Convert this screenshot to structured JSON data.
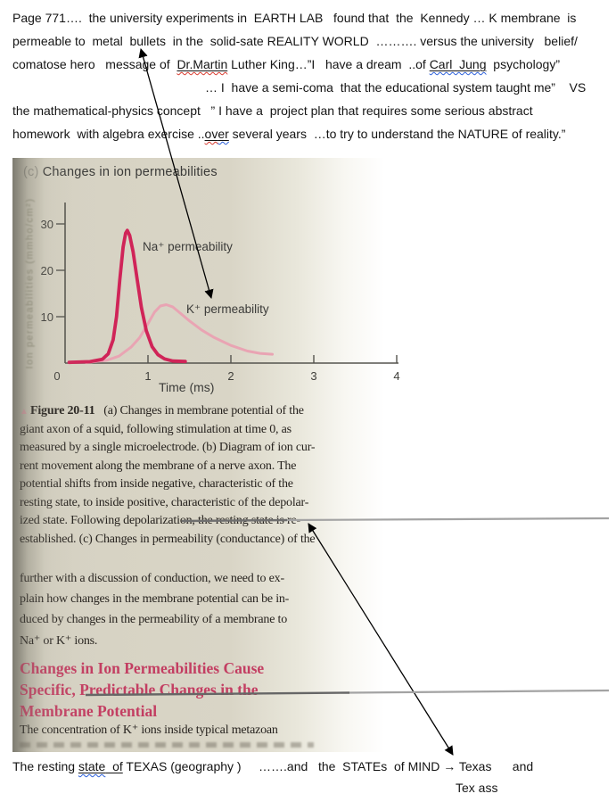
{
  "top": {
    "line1": "Page 771….  the university experiments in  EARTH LAB   found that  the  Kennedy … K membrane  is",
    "line2": "permeable to  metal  bullets  in the  solid-sate REALITY WORLD  ………. versus the university   belief/",
    "line3a": "comatose hero   message of  ",
    "line3_dr": "Dr.Martin",
    "line3b": " Luther King…”I   have a dream  ..of ",
    "line3_cj": "Carl  Jung",
    "line3c": "  psychology”",
    "line4": "… I  have a semi-coma  that the educational system taught me”    VS",
    "line5": "the mathematical-physics concept   ” I have a  project plan that requires some serious abstract",
    "line6a": "homework  with algebra exercise ..",
    "line6_ov": "ov",
    "line6_er": "er",
    "line6b": " several years  …to try to understand the NATURE of reality.”"
  },
  "scan": {
    "chart": {
      "title_prefix": "(c) ",
      "title": "Changes in ion permeabilities",
      "ylabel": "Ion permeabilities (mmho/cm²)",
      "na_label": "Na⁺ permeability",
      "k_label": "K⁺ permeability",
      "xlabel": "Time (ms)"
    },
    "caption": {
      "marker": "▲ ",
      "figure": "Figure 20-11",
      "line1rest": "   (a) Changes in membrane potential of the",
      "lines": [
        "giant axon of a squid, following stimulation at time 0, as",
        "measured by a single microelectrode. (b) Diagram of ion cur-",
        "rent movement along the membrane of a nerve axon. The",
        "potential shifts from inside negative, characteristic of the",
        "resting state, to inside positive, characteristic of the depolar-",
        "ized state. Following depolarization, the resting state is re-",
        "established. (c) Changes in permeability (conductance) of the"
      ]
    },
    "para2": {
      "lines": [
        "further with a discussion of conduction, we need to ex-",
        "plain how changes in the membrane potential can be in-",
        "duced by changes in the permeability of a membrane to",
        "Na⁺ or K⁺ ions."
      ]
    },
    "heading": {
      "color": "#c33e62",
      "lines": [
        "Changes in Ion Permeabilities Cause",
        "Specific, Predictable Changes in the",
        "Membrane Potential"
      ]
    },
    "para3": "The concentration of K⁺ ions inside typical metazoan"
  },
  "bottom": {
    "b1": "The resting ",
    "state": "state",
    "state_of_rest": "  of",
    "b2": " TEXAS (geography )     …….and   the  STATEs  of MIND ",
    "arrow_glyph": "→",
    "b3": " Texas      and",
    "texass": "Tex ass"
  },
  "chart_data": {
    "type": "line",
    "title": "(c) Changes in ion permeabilities",
    "xlabel": "Time (ms)",
    "ylabel": "Ion permeabilities (mmho/cm²)",
    "xlim": [
      0,
      4.2
    ],
    "ylim": [
      0,
      34
    ],
    "xticks": [
      0,
      1,
      2,
      3,
      4
    ],
    "yticks": [
      10,
      20,
      30
    ],
    "xtick_labels": [
      "0",
      "1",
      "2",
      "3",
      "4"
    ],
    "ytick_labels": [
      "10",
      "20",
      "30"
    ],
    "grid": false,
    "legend_position": "inline-labels",
    "series": [
      {
        "id": "curve-k",
        "name": "K⁺ permeability",
        "color": "#e9a4b3",
        "peak": {
          "t": 1.2,
          "value": 12.5
        },
        "points": [
          [
            0.25,
            0.1
          ],
          [
            0.5,
            0.6
          ],
          [
            0.65,
            1.5
          ],
          [
            0.8,
            3.5
          ],
          [
            0.9,
            5.5
          ],
          [
            1.0,
            8.5
          ],
          [
            1.08,
            11.0
          ],
          [
            1.15,
            12.3
          ],
          [
            1.22,
            12.6
          ],
          [
            1.3,
            12.1
          ],
          [
            1.4,
            10.6
          ],
          [
            1.5,
            9.1
          ],
          [
            1.65,
            7.1
          ],
          [
            1.8,
            5.5
          ],
          [
            2.0,
            3.8
          ],
          [
            2.2,
            2.6
          ],
          [
            2.35,
            2.1
          ],
          [
            2.5,
            1.9
          ]
        ]
      },
      {
        "id": "curve-na",
        "name": "Na⁺ permeability",
        "color": "#d02458",
        "peak": {
          "t": 0.75,
          "value": 28.5
        },
        "points": [
          [
            0.05,
            0.15
          ],
          [
            0.3,
            0.3
          ],
          [
            0.45,
            0.8
          ],
          [
            0.52,
            2.0
          ],
          [
            0.58,
            5.0
          ],
          [
            0.62,
            10.0
          ],
          [
            0.66,
            18.0
          ],
          [
            0.7,
            25.0
          ],
          [
            0.73,
            28.0
          ],
          [
            0.75,
            28.6
          ],
          [
            0.78,
            27.5
          ],
          [
            0.82,
            24.0
          ],
          [
            0.87,
            18.0
          ],
          [
            0.92,
            12.0
          ],
          [
            0.98,
            7.0
          ],
          [
            1.05,
            3.5
          ],
          [
            1.12,
            1.8
          ],
          [
            1.2,
            0.9
          ],
          [
            1.3,
            0.45
          ],
          [
            1.45,
            0.35
          ]
        ]
      }
    ]
  },
  "annotations": {
    "arrow1": {
      "points_up_at": "bullets",
      "points_down_at": "K⁺ permeability curve"
    },
    "arrow2": {
      "points_up_at": "(conductance)",
      "points_down_at": "Texas"
    },
    "arrow_color": "#000000",
    "rule_color": "#9a9a9a"
  }
}
